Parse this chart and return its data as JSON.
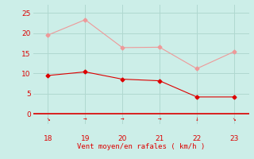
{
  "x": [
    18,
    19,
    20,
    21,
    22,
    23
  ],
  "wind_avg": [
    9.5,
    10.4,
    8.6,
    8.2,
    4.2,
    4.2
  ],
  "wind_gust": [
    19.5,
    23.3,
    16.4,
    16.5,
    11.2,
    15.4
  ],
  "avg_color": "#dd0000",
  "gust_color": "#ee9999",
  "bg_color": "#cceee8",
  "grid_color": "#b0d8d0",
  "axis_color": "#dd0000",
  "xlabel": "Vent moyen/en rafales ( km/h )",
  "xlabel_color": "#dd0000",
  "yticks": [
    0,
    5,
    10,
    15,
    20,
    25
  ],
  "xticks": [
    18,
    19,
    20,
    21,
    22,
    23
  ],
  "ylim": [
    -2.5,
    27
  ],
  "xlim": [
    17.6,
    23.4
  ],
  "wind_symbols": [
    "↘",
    "→",
    "→",
    "→",
    "↓",
    "↘"
  ],
  "marker": "D",
  "markersize": 2.5
}
